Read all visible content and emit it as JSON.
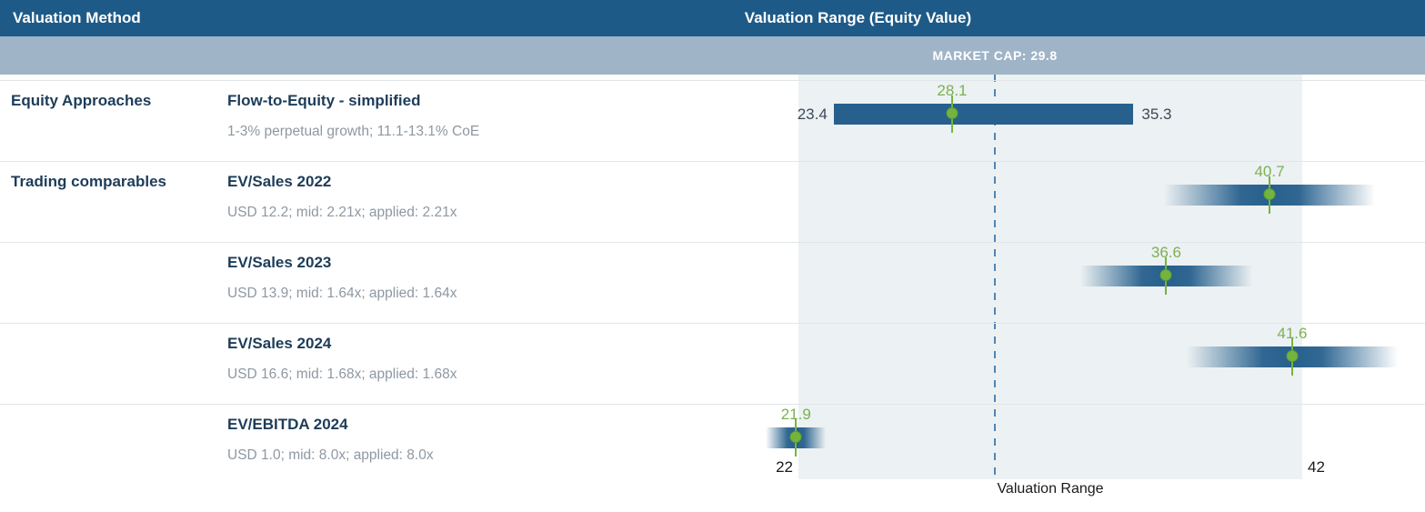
{
  "header": {
    "method_col": "Valuation Method",
    "range_col": "Valuation Range (Equity Value)"
  },
  "market_cap": {
    "label": "MARKET CAP: 29.8",
    "value": 29.8
  },
  "axis": {
    "min": 22,
    "max": 42,
    "tick_left": "22",
    "tick_right": "42",
    "title": "Valuation Range"
  },
  "colors": {
    "header_bg": "#1e5a87",
    "band_bg": "#9fb4c7",
    "plot_bg": "#ecf1f3",
    "bar_blue": "#27608d",
    "accent_green": "#74b43e",
    "green_label": "#7cb152",
    "dashed_line": "#4e86b8",
    "title_navy": "#1d3c59",
    "subtitle_gray": "#8e98a2",
    "endpoint_label": "#3b4a58",
    "separator": "#e2e6e8"
  },
  "rows": [
    {
      "category": "Equity Approaches",
      "method": "Flow-to-Equity - simplified",
      "detail": "1-3% perpetual growth; 11.1-13.1% CoE",
      "bar": {
        "style": "solid",
        "low": 23.4,
        "high": 35.3,
        "mid": 28.1,
        "low_label": "23.4",
        "high_label": "35.3",
        "mid_label": "28.1"
      }
    },
    {
      "category": "Trading comparables",
      "method": "EV/Sales 2022",
      "detail": "USD 12.2; mid: 2.21x; applied: 2.21x",
      "bar": {
        "style": "fade",
        "low": 36.5,
        "high": 44.9,
        "mid": 40.7,
        "mid_label": "40.7"
      }
    },
    {
      "category": "",
      "method": "EV/Sales 2023",
      "detail": "USD 13.9; mid: 1.64x; applied: 1.64x",
      "bar": {
        "style": "fade",
        "low": 33.2,
        "high": 40.0,
        "mid": 36.6,
        "mid_label": "36.6"
      }
    },
    {
      "category": "",
      "method": "EV/Sales 2024",
      "detail": "USD 16.6; mid: 1.68x; applied: 1.68x",
      "bar": {
        "style": "fade",
        "low": 37.4,
        "high": 45.8,
        "mid": 41.6,
        "mid_label": "41.6"
      }
    },
    {
      "category": "",
      "method": "EV/EBITDA 2024",
      "detail": "USD 1.0; mid: 8.0x; applied: 8.0x",
      "bar": {
        "style": "fade",
        "low": 20.7,
        "high": 23.1,
        "mid": 21.9,
        "mid_label": "21.9"
      }
    }
  ],
  "chart_data": {
    "type": "bar",
    "variant": "valuation-football-field-range-bars",
    "title": "Valuation Range (Equity Value)",
    "xlabel": "Valuation Range",
    "xlim": [
      22,
      42
    ],
    "x_ticks": [
      22,
      42
    ],
    "market_cap_line": 29.8,
    "series": [
      {
        "group": "Equity Approaches",
        "name": "Flow-to-Equity - simplified",
        "note": "1-3% perpetual growth; 11.1-13.1% CoE",
        "low": 23.4,
        "high": 35.3,
        "mid": 28.1,
        "bar_style": "solid"
      },
      {
        "group": "Trading comparables",
        "name": "EV/Sales 2022",
        "note": "USD 12.2; mid: 2.21x; applied: 2.21x",
        "low": 36.5,
        "high": 44.9,
        "mid": 40.7,
        "bar_style": "fade"
      },
      {
        "group": "Trading comparables",
        "name": "EV/Sales 2023",
        "note": "USD 13.9; mid: 1.64x; applied: 1.64x",
        "low": 33.2,
        "high": 40.0,
        "mid": 36.6,
        "bar_style": "fade"
      },
      {
        "group": "Trading comparables",
        "name": "EV/Sales 2024",
        "note": "USD 16.6; mid: 1.68x; applied: 1.68x",
        "low": 37.4,
        "high": 45.8,
        "mid": 41.6,
        "bar_style": "fade"
      },
      {
        "group": "Trading comparables",
        "name": "EV/EBITDA 2024",
        "note": "USD 1.0; mid: 8.0x; applied: 8.0x",
        "low": 20.7,
        "high": 23.1,
        "mid": 21.9,
        "bar_style": "fade"
      }
    ],
    "annotations": "Only midpoint values are labeled on fade bars; solid bar labels its endpoints 23.4 and 35.3. Fade-bar low/high estimated from gradient extents. Dashed vertical line marks MARKET CAP: 29.8."
  }
}
